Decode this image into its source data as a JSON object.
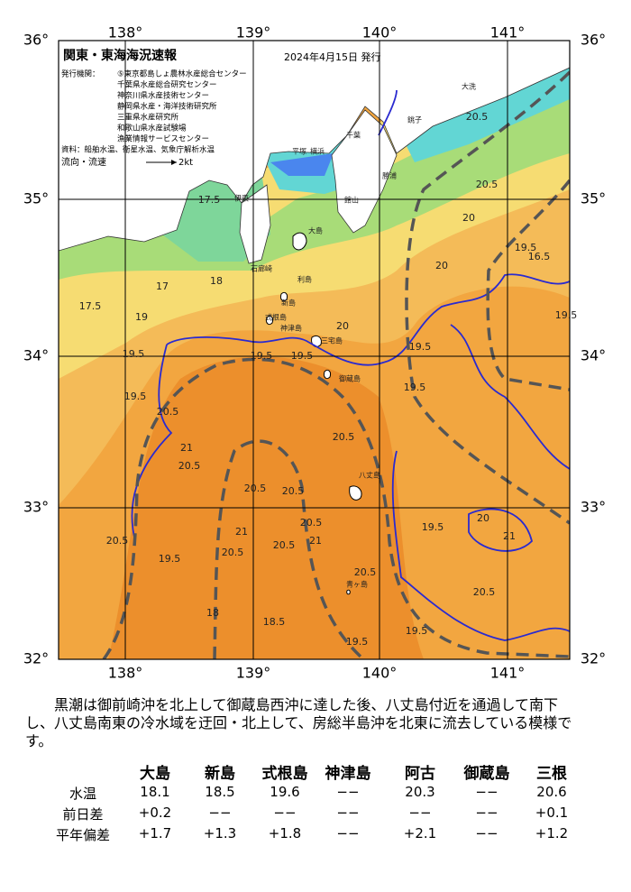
{
  "header": {
    "title": "関東・東海海況速報",
    "date": "2024年4月15日 発行",
    "issuers_label": "発行機関：",
    "issuers": [
      "⑤東京都島しょ農林水産総合センター",
      "千葉県水産総合研究センター",
      "神奈川県水産技術センター",
      "静岡県水産・海洋技術研究所",
      "三重県水産研究所",
      "和歌山県水産試験場",
      "漁業情報サービスセンター"
    ],
    "data_source": "資料：船舶水温、衛星水温、気象庁解析水温",
    "flow_legend_label": "流向・流速",
    "flow_legend_speed": "2kt"
  },
  "axes": {
    "lon_labels": [
      "138°",
      "139°",
      "140°",
      "141°"
    ],
    "lat_labels": [
      "36°",
      "35°",
      "34°",
      "33°",
      "32°"
    ]
  },
  "isotherm_labels": [
    "17.5",
    "17",
    "17.5",
    "18",
    "19",
    "19.5",
    "19.5",
    "20.5",
    "21",
    "20.5",
    "20.5",
    "20.5",
    "20.5",
    "21",
    "21",
    "20.5",
    "20.5",
    "19.5",
    "20.5",
    "20.5",
    "19.5",
    "19.5",
    "20",
    "19.5",
    "19.5",
    "20",
    "20",
    "19.5",
    "16.5",
    "19.5",
    "20.5",
    "20.5",
    "19.5",
    "19.5",
    "19.5",
    "20",
    "20.5",
    "21",
    "20.5",
    "18.5",
    "18"
  ],
  "place_names": [
    "大島",
    "利島",
    "新島",
    "式根島",
    "神津島",
    "三宅島",
    "御蔵島",
    "八丈島",
    "青ヶ島",
    "平塚",
    "横浜",
    "千葉",
    "銚子",
    "大洗",
    "勝浦",
    "伊東",
    "石廊崎",
    "館山"
  ],
  "summary": "黒潮は御前崎沖を北上して御蔵島西沖に達した後、八丈島付近を通過して南下し、八丈島南東の冷水域を迂回・北上して、房総半島沖を北東に流去している模様です。",
  "table": {
    "headers": [
      "大島",
      "新島",
      "式根島",
      "神津島",
      "阿古",
      "御蔵島",
      "三根"
    ],
    "rows": [
      {
        "label": "水温",
        "cells": [
          "18.1",
          "18.5",
          "19.6",
          "−−",
          "20.3",
          "−−",
          "20.6"
        ]
      },
      {
        "label": "前日差",
        "cells": [
          "+0.2",
          "−−",
          "−−",
          "−−",
          "−−",
          "−−",
          "+0.1"
        ]
      },
      {
        "label": "平年偏差",
        "cells": [
          "+1.7",
          "+1.3",
          "+1.8",
          "−−",
          "+2.1",
          "−−",
          "+1.2"
        ]
      }
    ]
  }
}
